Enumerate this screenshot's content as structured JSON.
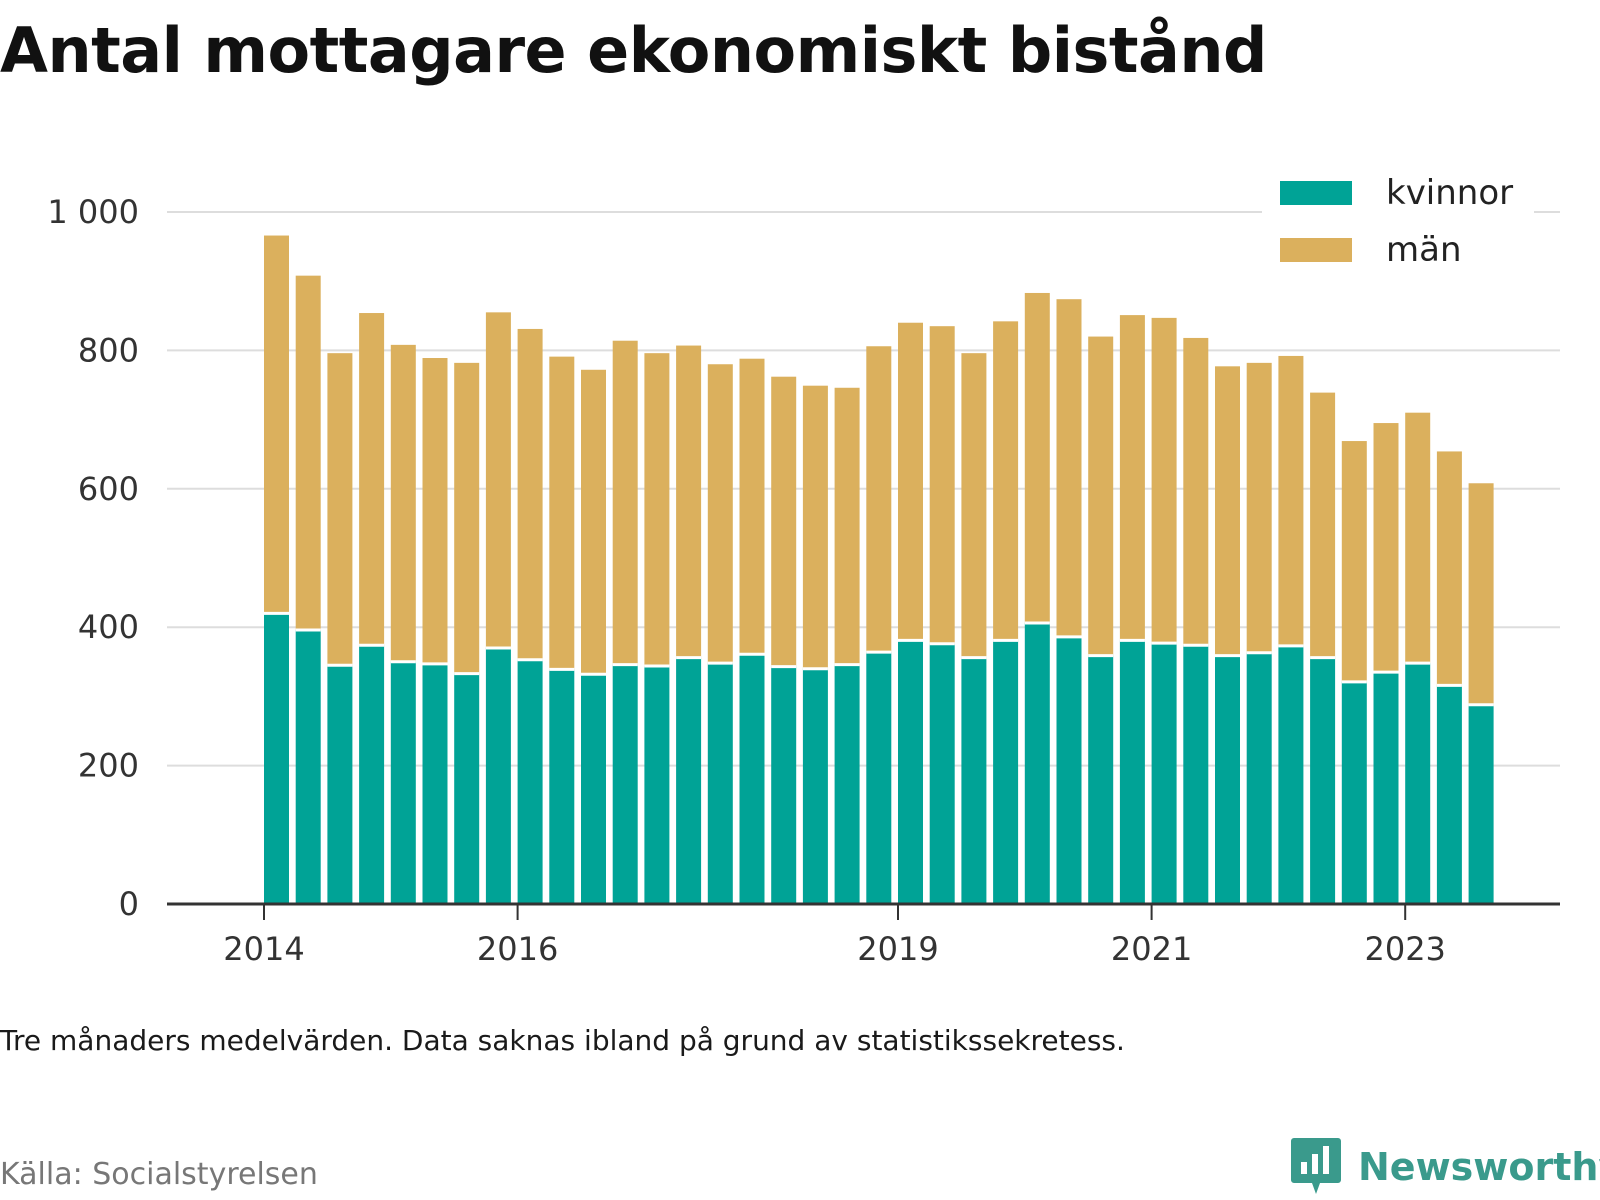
{
  "title": "Antal mottagare ekonomiskt bistånd",
  "note": "Tre månaders medelvärden. Data saknas ibland på grund av statistikssekretess.",
  "source": "Källa: Socialstyrelsen",
  "brand": {
    "name": "Newsworthy",
    "icon": "newsworthy-logo-icon",
    "color": "#3a9a8c"
  },
  "colors": {
    "kvinnor": "#00a396",
    "man": "#dbb05d",
    "grid": "#dddddd",
    "axis": "#333333"
  },
  "chart_data": {
    "type": "bar",
    "stacked": true,
    "ylim": [
      0,
      1000
    ],
    "yticks": [
      0,
      200,
      400,
      600,
      800,
      1000
    ],
    "ytick_labels": [
      "0",
      "200",
      "400",
      "600",
      "800",
      "1 000"
    ],
    "xticks": [
      {
        "label": "2014",
        "index": -1
      },
      {
        "label": "2016",
        "index": 7
      },
      {
        "label": "2019",
        "index": 19
      },
      {
        "label": "2021",
        "index": 27
      },
      {
        "label": "2023",
        "index": 35
      }
    ],
    "legend": {
      "position": "top-right",
      "entries": [
        "kvinnor",
        "män"
      ]
    },
    "grid": true,
    "series": [
      {
        "name": "kvinnor",
        "values": [
          420,
          396,
          345,
          374,
          350,
          347,
          333,
          370,
          353,
          339,
          332,
          346,
          344,
          356,
          348,
          361,
          343,
          340,
          346,
          364,
          381,
          376,
          356,
          381,
          406,
          386,
          359,
          381,
          377,
          374,
          359,
          363,
          373,
          356,
          321,
          335,
          348,
          316,
          288
        ]
      },
      {
        "name": "män",
        "values": [
          546,
          512,
          451,
          480,
          458,
          442,
          449,
          485,
          478,
          452,
          440,
          468,
          452,
          451,
          432,
          427,
          419,
          409,
          400,
          442,
          459,
          459,
          440,
          461,
          477,
          488,
          461,
          470,
          470,
          444,
          418,
          419,
          419,
          383,
          348,
          360,
          362,
          338,
          320
        ]
      }
    ]
  }
}
